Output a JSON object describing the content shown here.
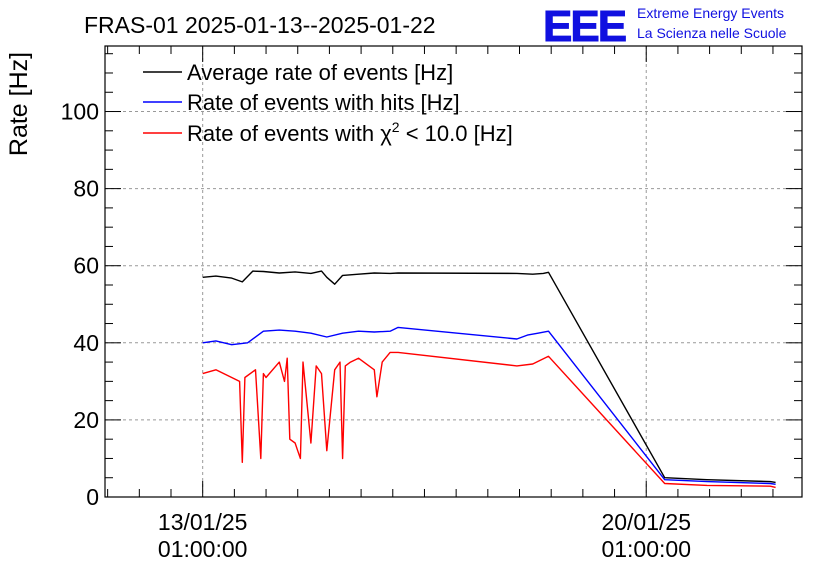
{
  "header": {
    "title": "FRAS-01 2025-01-13--2025-01-22"
  },
  "logo": {
    "mark": "EEE",
    "line1": "Extreme Energy Events",
    "line2": "La Scienza nelle Scuole",
    "color": "#1010e0"
  },
  "chart_data": {
    "type": "line",
    "ylabel": "Rate [Hz]",
    "xlabel": "",
    "ylim": [
      0,
      117
    ],
    "xlim": [
      "2025-01-11 12:00",
      "2025-01-22 12:00"
    ],
    "y_ticks": [
      "0",
      "20",
      "40",
      "60",
      "80",
      "100"
    ],
    "x_ticks": [
      {
        "date": "13/01/25",
        "time": "01:00:00"
      },
      {
        "date": "20/01/25",
        "time": "01:00:00"
      }
    ],
    "grid": true,
    "legend_position": "top-left",
    "legend": {
      "avg": "Average rate of events [Hz]",
      "hits": "Rate of events with hits [Hz]",
      "chi_prefix": "Rate of events with ",
      "chi_symbol": "χ",
      "chi_exp": "2",
      "chi_suffix": " < 10.0 [Hz]"
    },
    "series": [
      {
        "name": "Average rate of events [Hz]",
        "color": "#000000",
        "x": [
          "2025-01-13 01:00",
          "2025-01-13 06:00",
          "2025-01-13 12:00",
          "2025-01-13 16:00",
          "2025-01-13 20:00",
          "2025-01-14 00:00",
          "2025-01-14 06:00",
          "2025-01-14 12:00",
          "2025-01-14 18:00",
          "2025-01-14 22:00",
          "2025-01-15 00:00",
          "2025-01-15 03:00",
          "2025-01-15 06:00",
          "2025-01-15 12:00",
          "2025-01-15 18:00",
          "2025-01-16 00:00",
          "2025-01-16 03:00",
          "2025-01-18 00:00",
          "2025-01-18 06:00",
          "2025-01-18 10:00",
          "2025-01-18 12:00",
          "2025-01-20 08:00",
          "2025-01-21 00:00",
          "2025-01-22 00:00",
          "2025-01-22 02:00"
        ],
        "y": [
          57,
          57.3,
          56.8,
          55.8,
          58.6,
          58.5,
          58.1,
          58.4,
          58.0,
          58.6,
          57.0,
          55.2,
          57.5,
          57.8,
          58.1,
          58.0,
          58.1,
          58.0,
          57.8,
          58.0,
          58.3,
          5,
          4.5,
          4.0,
          3.8
        ]
      },
      {
        "name": "Rate of events with hits [Hz]",
        "color": "#0000ff",
        "x": [
          "2025-01-13 01:00",
          "2025-01-13 06:00",
          "2025-01-13 12:00",
          "2025-01-13 18:00",
          "2025-01-14 00:00",
          "2025-01-14 06:00",
          "2025-01-14 12:00",
          "2025-01-14 18:00",
          "2025-01-15 00:00",
          "2025-01-15 06:00",
          "2025-01-15 12:00",
          "2025-01-15 18:00",
          "2025-01-16 00:00",
          "2025-01-16 03:00",
          "2025-01-18 00:00",
          "2025-01-18 04:00",
          "2025-01-18 08:00",
          "2025-01-18 12:00",
          "2025-01-20 08:00",
          "2025-01-21 00:00",
          "2025-01-22 00:00",
          "2025-01-22 02:00"
        ],
        "y": [
          40,
          40.5,
          39.5,
          40.0,
          43.0,
          43.3,
          43.0,
          42.5,
          41.5,
          42.5,
          43.0,
          42.8,
          43.0,
          44.0,
          41.0,
          42.0,
          42.5,
          43.0,
          4.5,
          4.0,
          3.5,
          3.3
        ]
      },
      {
        "name": "Rate of events with χ2 < 10.0 [Hz]",
        "color": "#ff0000",
        "x": [
          "2025-01-13 01:00",
          "2025-01-13 06:00",
          "2025-01-13 12:00",
          "2025-01-13 15:00",
          "2025-01-13 16:00",
          "2025-01-13 17:00",
          "2025-01-13 21:00",
          "2025-01-13 23:00",
          "2025-01-14 00:00",
          "2025-01-14 01:00",
          "2025-01-14 06:00",
          "2025-01-14 08:00",
          "2025-01-14 09:00",
          "2025-01-14 10:00",
          "2025-01-14 12:00",
          "2025-01-14 13:00",
          "2025-01-14 14:00",
          "2025-01-14 15:00",
          "2025-01-14 18:00",
          "2025-01-14 20:00",
          "2025-01-14 22:00",
          "2025-01-15 00:00",
          "2025-01-15 03:00",
          "2025-01-15 05:00",
          "2025-01-15 06:00",
          "2025-01-15 07:00",
          "2025-01-15 09:00",
          "2025-01-15 12:00",
          "2025-01-15 18:00",
          "2025-01-15 19:00",
          "2025-01-15 21:00",
          "2025-01-16 00:00",
          "2025-01-16 03:00",
          "2025-01-18 00:00",
          "2025-01-18 06:00",
          "2025-01-18 12:00",
          "2025-01-20 08:00",
          "2025-01-21 00:00",
          "2025-01-22 00:00",
          "2025-01-22 02:00"
        ],
        "y": [
          32,
          33,
          31,
          30,
          9,
          31,
          33,
          10,
          32,
          31,
          35,
          30,
          36,
          15,
          14,
          12,
          10,
          35,
          14,
          34,
          32,
          12,
          33,
          35,
          10,
          34,
          35,
          36,
          33,
          26,
          35,
          37.5,
          37.5,
          34,
          34.5,
          36.5,
          3.5,
          3.0,
          2.8,
          2.5
        ]
      }
    ]
  }
}
